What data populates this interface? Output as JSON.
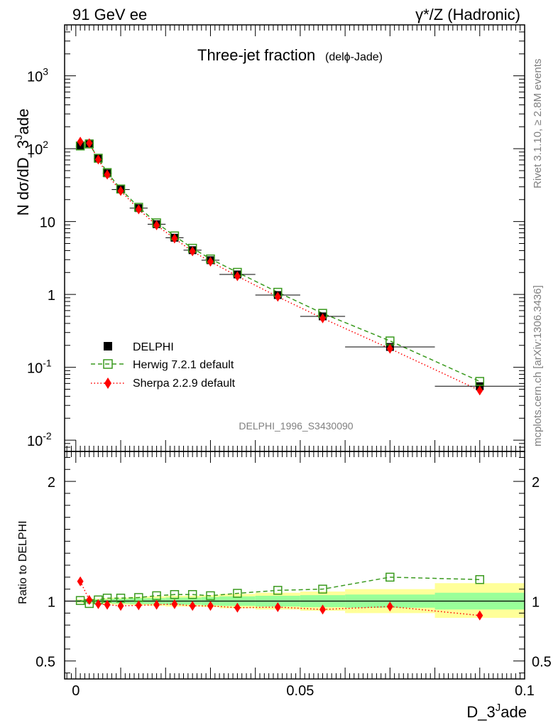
{
  "header": {
    "left": "91 GeV ee",
    "right": "γ*/Z (Hadronic)"
  },
  "chart_data": {
    "type": "scatter",
    "title": "Three-jet fraction",
    "title_suffix": "(delϕ-Jade)",
    "xlabel": "D_3^Jade",
    "ylabel_main": "N dσ/dD_3^Jade",
    "ylabel_ratio": "Ratio to DELPHI",
    "analysis_label": "DELPHI_1996_S3430090",
    "side_label_top": "Rivet 3.1.10, ≥ 2.8M events",
    "side_label_bottom": "mcplots.cern.ch [arXiv:1306.3436]",
    "xlim": [
      -0.0025,
      0.1
    ],
    "ylim_main": [
      0.007,
      5000
    ],
    "yscale_main": "log",
    "ylim_ratio": [
      0.35,
      2.25
    ],
    "x_ticks": [
      "0",
      "0.05",
      "0.1"
    ],
    "y_ticks_main": [
      "10^{-2}",
      "10^{-1}",
      "1",
      "10",
      "10^{2}",
      "10^{3}"
    ],
    "y_ticks_ratio": [
      "0.5",
      "1",
      "2"
    ],
    "legend_position": "lower-left",
    "bins": [
      [
        0,
        0.002
      ],
      [
        0.002,
        0.004
      ],
      [
        0.004,
        0.006
      ],
      [
        0.006,
        0.008
      ],
      [
        0.008,
        0.012
      ],
      [
        0.012,
        0.016
      ],
      [
        0.016,
        0.02
      ],
      [
        0.02,
        0.024
      ],
      [
        0.024,
        0.028
      ],
      [
        0.028,
        0.032
      ],
      [
        0.032,
        0.04
      ],
      [
        0.04,
        0.05
      ],
      [
        0.05,
        0.06
      ],
      [
        0.06,
        0.08
      ],
      [
        0.08,
        0.1
      ]
    ],
    "x": [
      0.001,
      0.003,
      0.005,
      0.007,
      0.01,
      0.014,
      0.018,
      0.022,
      0.026,
      0.03,
      0.036,
      0.045,
      0.055,
      0.07,
      0.09
    ],
    "series": [
      {
        "name": "DELPHI",
        "style": "filled-square",
        "color": "#000000",
        "values": [
          108,
          118,
          73,
          46,
          27.5,
          15.3,
          9.2,
          6.0,
          4.05,
          2.95,
          1.88,
          0.98,
          0.5,
          0.19,
          0.055
        ]
      },
      {
        "name": "Herwig 7.2.1 default",
        "style": "open-square-dashed",
        "color": "#3a9a1e",
        "values": [
          109,
          116,
          74,
          47,
          28,
          15.7,
          9.6,
          6.35,
          4.3,
          3.07,
          2.01,
          1.07,
          0.55,
          0.23,
          0.064
        ]
      },
      {
        "name": "Sherpa 2.2.9 default",
        "style": "diamond-dotted",
        "color": "#ff0000",
        "values": [
          125,
          119,
          71,
          44,
          26.3,
          14.7,
          8.9,
          5.85,
          3.9,
          2.82,
          1.78,
          0.93,
          0.47,
          0.18,
          0.048
        ]
      }
    ],
    "ratio_series": [
      {
        "name": "Herwig 7.2.1 default",
        "values": [
          1.005,
          0.98,
          1.01,
          1.025,
          1.025,
          1.03,
          1.045,
          1.055,
          1.055,
          1.045,
          1.065,
          1.09,
          1.1,
          1.2,
          1.18
        ]
      },
      {
        "name": "Sherpa 2.2.9 default",
        "values": [
          1.165,
          1.01,
          0.975,
          0.97,
          0.96,
          0.965,
          0.97,
          0.975,
          0.96,
          0.96,
          0.945,
          0.95,
          0.93,
          0.955,
          0.88
        ]
      }
    ],
    "band_inner_green": [
      [
        0.99,
        1.01
      ],
      [
        0.985,
        1.015
      ],
      [
        0.985,
        1.015
      ],
      [
        0.985,
        1.015
      ],
      [
        0.98,
        1.02
      ],
      [
        0.975,
        1.025
      ],
      [
        0.975,
        1.025
      ],
      [
        0.97,
        1.03
      ],
      [
        0.97,
        1.03
      ],
      [
        0.965,
        1.035
      ],
      [
        0.96,
        1.04
      ],
      [
        0.955,
        1.045
      ],
      [
        0.95,
        1.05
      ],
      [
        0.945,
        1.055
      ],
      [
        0.93,
        1.07
      ]
    ],
    "band_outer_yellow": [
      [
        0.985,
        1.015
      ],
      [
        0.98,
        1.02
      ],
      [
        0.98,
        1.02
      ],
      [
        0.975,
        1.025
      ],
      [
        0.97,
        1.03
      ],
      [
        0.965,
        1.035
      ],
      [
        0.96,
        1.04
      ],
      [
        0.955,
        1.045
      ],
      [
        0.955,
        1.045
      ],
      [
        0.95,
        1.05
      ],
      [
        0.94,
        1.06
      ],
      [
        0.93,
        1.07
      ],
      [
        0.92,
        1.08
      ],
      [
        0.9,
        1.1
      ],
      [
        0.86,
        1.15
      ]
    ]
  }
}
